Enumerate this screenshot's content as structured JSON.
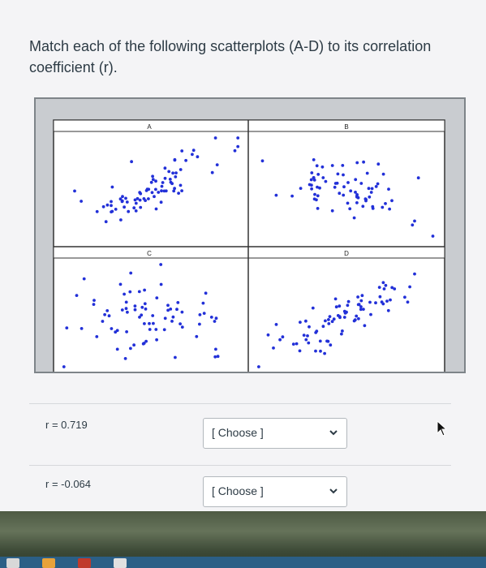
{
  "question": {
    "text": "Match each of the following scatterplots (A-D) to its correlation coefficient (r)."
  },
  "figure": {
    "panels": [
      {
        "label": "A"
      },
      {
        "label": "B"
      },
      {
        "label": "C"
      },
      {
        "label": "D"
      }
    ],
    "point_color": "#2230d8"
  },
  "rows": [
    {
      "label": "r = 0.719",
      "selected": "[ Choose ]"
    },
    {
      "label": "r = -0.064",
      "selected": "[ Choose ]"
    }
  ],
  "icons": {
    "dropdown": "chevron-down-icon",
    "cursor": "mouse-pointer-icon"
  }
}
